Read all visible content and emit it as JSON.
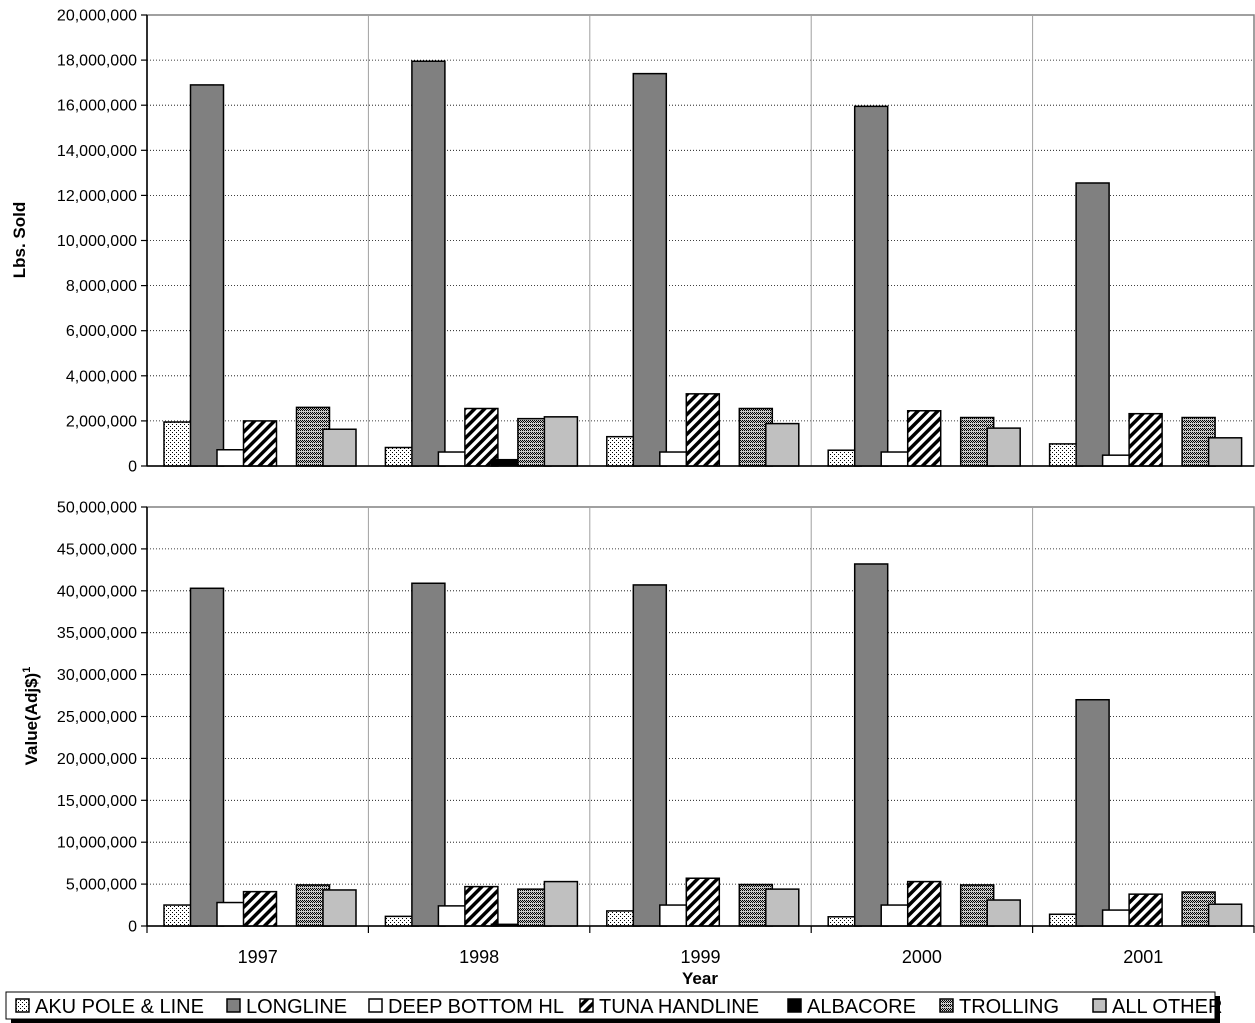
{
  "chart_data": [
    {
      "type": "bar",
      "ylabel": "Lbs. Sold",
      "ylim": [
        0,
        20000000
      ],
      "yticks": [
        "0",
        "2,000,000",
        "4,000,000",
        "6,000,000",
        "8,000,000",
        "10,000,000",
        "12,000,000",
        "14,000,000",
        "16,000,000",
        "18,000,000",
        "20,000,000"
      ],
      "grid": true,
      "categories": [
        "1997",
        "1998",
        "1999",
        "2000",
        "2001"
      ],
      "series": [
        {
          "name": "AKU POLE & LINE",
          "values": [
            1950000,
            820000,
            1300000,
            700000,
            980000
          ]
        },
        {
          "name": "LONGLINE",
          "values": [
            16900000,
            17950000,
            17400000,
            15950000,
            12550000
          ]
        },
        {
          "name": "DEEP BOTTOM HL",
          "values": [
            720000,
            620000,
            620000,
            620000,
            480000
          ]
        },
        {
          "name": "TUNA HANDLINE",
          "values": [
            2000000,
            2550000,
            3200000,
            2450000,
            2320000
          ]
        },
        {
          "name": "ALBACORE",
          "values": [
            0,
            280000,
            0,
            0,
            0
          ]
        },
        {
          "name": "TROLLING",
          "values": [
            2600000,
            2100000,
            2550000,
            2150000,
            2150000
          ]
        },
        {
          "name": "ALL OTHER",
          "values": [
            1630000,
            2180000,
            1880000,
            1680000,
            1250000
          ]
        }
      ]
    },
    {
      "type": "bar",
      "ylabel": "Value(Adj$)",
      "ylabel_sup": "1",
      "xlabel": "Year",
      "ylim": [
        0,
        50000000
      ],
      "yticks": [
        "0",
        "5,000,000",
        "10,000,000",
        "15,000,000",
        "20,000,000",
        "25,000,000",
        "30,000,000",
        "35,000,000",
        "40,000,000",
        "45,000,000",
        "50,000,000"
      ],
      "grid": true,
      "categories": [
        "1997",
        "1998",
        "1999",
        "2000",
        "2001"
      ],
      "series": [
        {
          "name": "AKU POLE & LINE",
          "values": [
            2500000,
            1150000,
            1800000,
            1100000,
            1400000
          ]
        },
        {
          "name": "LONGLINE",
          "values": [
            40300000,
            40900000,
            40700000,
            43200000,
            27000000
          ]
        },
        {
          "name": "DEEP BOTTOM HL",
          "values": [
            2800000,
            2400000,
            2500000,
            2500000,
            1900000
          ]
        },
        {
          "name": "TUNA HANDLINE",
          "values": [
            4100000,
            4700000,
            5700000,
            5300000,
            3800000
          ]
        },
        {
          "name": "ALBACORE",
          "values": [
            0,
            200000,
            0,
            0,
            0
          ]
        },
        {
          "name": "TROLLING",
          "values": [
            4900000,
            4400000,
            4950000,
            4900000,
            4050000
          ]
        },
        {
          "name": "ALL OTHER",
          "values": [
            4300000,
            5300000,
            4400000,
            3100000,
            2600000
          ]
        }
      ]
    }
  ],
  "legend": {
    "placement": "bottom",
    "entries": [
      "AKU POLE & LINE",
      "LONGLINE",
      "DEEP BOTTOM HL",
      "TUNA HANDLINE",
      "ALBACORE",
      "TROLLING",
      "ALL OTHER"
    ]
  },
  "series_styles": [
    {
      "fill": "dots-light",
      "color": "#ffffff"
    },
    {
      "fill": "solid",
      "color": "#808080"
    },
    {
      "fill": "solid",
      "color": "#ffffff"
    },
    {
      "fill": "diagonal-hatch",
      "color": "#ffffff"
    },
    {
      "fill": "solid",
      "color": "#000000"
    },
    {
      "fill": "crosshatch-dense",
      "color": "#c0c0c0"
    },
    {
      "fill": "solid",
      "color": "#c0c0c0"
    }
  ]
}
